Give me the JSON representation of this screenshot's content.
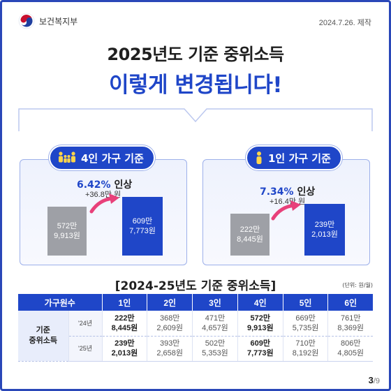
{
  "header": {
    "org_name": "보건복지부",
    "date": "2024.7.26. 제작"
  },
  "title": {
    "line1": "2025년도 기준 중위소득",
    "line2": "이렇게 변경됩니다!"
  },
  "comparisons": [
    {
      "label": "4인 가구 기준",
      "icon": "family-icon",
      "increase_pct": "6.42%",
      "increase_word": "인상",
      "increase_amount": "+36.8만 원",
      "old": {
        "line1": "572만",
        "line2": "9,913원",
        "value": 5729913
      },
      "new": {
        "line1": "609만",
        "line2": "7,773원",
        "value": 6097773
      }
    },
    {
      "label": "1인 가구 기준",
      "icon": "person-icon",
      "increase_pct": "7.34%",
      "increase_word": "인상",
      "increase_amount": "+16.4만 원",
      "old": {
        "line1": "222만",
        "line2": "8,445원",
        "value": 2228445
      },
      "new": {
        "line1": "239만",
        "line2": "2,013원",
        "value": 2392013
      }
    }
  ],
  "table": {
    "title": "[2024-25년도 기준 중위소득]",
    "unit": "(단위: 원/월)",
    "headers": [
      "가구원수",
      "1인",
      "2인",
      "3인",
      "4인",
      "5인",
      "6인"
    ],
    "row_label_1": "기준",
    "row_label_2": "중위소득",
    "rows": [
      {
        "year": "'24년",
        "cells": [
          {
            "l1": "222만",
            "l2": "8,445원"
          },
          {
            "l1": "368만",
            "l2": "2,609원"
          },
          {
            "l1": "471만",
            "l2": "4,657원"
          },
          {
            "l1": "572만",
            "l2": "9,913원"
          },
          {
            "l1": "669만",
            "l2": "5,735원"
          },
          {
            "l1": "761만",
            "l2": "8,369원"
          }
        ]
      },
      {
        "year": "'25년",
        "cells": [
          {
            "l1": "239만",
            "l2": "2,013원"
          },
          {
            "l1": "393만",
            "l2": "2,658원"
          },
          {
            "l1": "502만",
            "l2": "5,353원"
          },
          {
            "l1": "609만",
            "l2": "7,773원"
          },
          {
            "l1": "710만",
            "l2": "8,192원"
          },
          {
            "l1": "806만",
            "l2": "4,805원"
          }
        ]
      }
    ]
  },
  "pagination": {
    "current": "3",
    "total": "/9"
  },
  "colors": {
    "brand_blue": "#1f46c8",
    "old_bar_gray": "#9ea0a6",
    "arrow_pink": "#e8407a"
  }
}
